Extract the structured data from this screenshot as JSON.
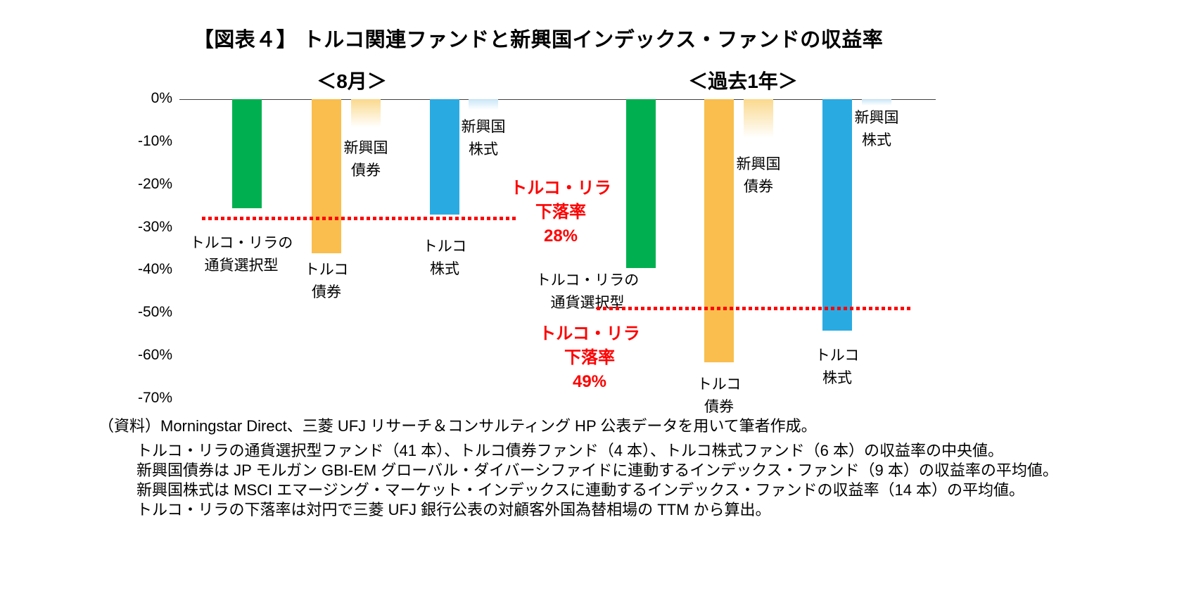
{
  "chart_data": {
    "type": "bar",
    "title": "【図表４】 トルコ関連ファンドと新興国インデックス・ファンドの収益率",
    "unit": "%",
    "ylim": [
      -70,
      0
    ],
    "grid": false,
    "yticks": [
      "0%",
      "-10%",
      "-20%",
      "-30%",
      "-40%",
      "-50%",
      "-60%",
      "-70%"
    ],
    "groups": [
      {
        "key": "august",
        "header": "＜8月＞",
        "bars": [
          {
            "key": "lira-currency-select",
            "name": "トルコ・リラの通貨選択型",
            "value": -25.5,
            "fill": "green",
            "label_lines": [
              "トルコ・リラの",
              "通貨選択型"
            ]
          },
          {
            "key": "turkey-bond",
            "name": "トルコ債券",
            "value": -36,
            "fill": "gold",
            "label_lines": [
              "トルコ",
              "債券"
            ]
          },
          {
            "key": "em-bond",
            "name": "新興国債券",
            "value": -6.5,
            "fill": "gold_fade",
            "label_lines": [
              "新興国",
              "債券"
            ]
          },
          {
            "key": "turkey-stock",
            "name": "トルコ株式",
            "value": -27,
            "fill": "blue",
            "label_lines": [
              "トルコ",
              "株式"
            ]
          },
          {
            "key": "em-stock",
            "name": "新興国株式",
            "value": -2.5,
            "fill": "blue_fade",
            "label_lines": [
              "新興国",
              "株式"
            ]
          }
        ],
        "reference_line": {
          "value": -28,
          "label_lines": [
            "トルコ・リラ",
            "下落率",
            "28%"
          ]
        }
      },
      {
        "key": "past-1-year",
        "header": "＜過去1年＞",
        "bars": [
          {
            "key": "lira-currency-select",
            "name": "トルコ・リラの通貨選択型",
            "value": -39.5,
            "fill": "green",
            "label_lines": [
              "トルコ・リラの",
              "通貨選択型"
            ]
          },
          {
            "key": "turkey-bond",
            "name": "トルコ債券",
            "value": -61.5,
            "fill": "gold",
            "label_lines": [
              "トルコ",
              "債券"
            ]
          },
          {
            "key": "em-bond",
            "name": "新興国債券",
            "value": -9,
            "fill": "gold_fade",
            "label_lines": [
              "新興国",
              "債券"
            ]
          },
          {
            "key": "turkey-stock",
            "name": "トルコ株式",
            "value": -54,
            "fill": "blue",
            "label_lines": [
              "トルコ",
              "株式"
            ]
          },
          {
            "key": "em-stock",
            "name": "新興国株式",
            "value": -1.5,
            "fill": "blue_fade",
            "label_lines": [
              "新興国",
              "株式"
            ]
          }
        ],
        "reference_line": {
          "value": -49,
          "label_lines": [
            "トルコ・リラ",
            "下落率",
            "49%"
          ]
        }
      }
    ]
  },
  "colors": {
    "green": "#00B050",
    "gold": "#F9BE4D",
    "gold_light": "#FAD98E",
    "blue": "#29ABE2",
    "blue_light": "#C9E6F7",
    "reference_red": "#FF0000",
    "axis_line": "#404040"
  },
  "footnotes": [
    "（資料）Morningstar Direct、三菱 UFJ リサーチ＆コンサルティング HP 公表データを用いて筆者作成。",
    "トルコ・リラの通貨選択型ファンド（41 本）、トルコ債券ファンド（4 本）、トルコ株式ファンド（6 本）の収益率の中央値。",
    "新興国債券は JP モルガン GBI-EM グローバル・ダイバーシファイドに連動するインデックス・ファンド（9 本）の収益率の平均値。",
    "新興国株式は MSCI エマージング・マーケット・インデックスに連動するインデックス・ファンドの収益率（14 本）の平均値。",
    "トルコ・リラの下落率は対円で三菱 UFJ 銀行公表の対顧客外国為替相場の TTM から算出。"
  ]
}
